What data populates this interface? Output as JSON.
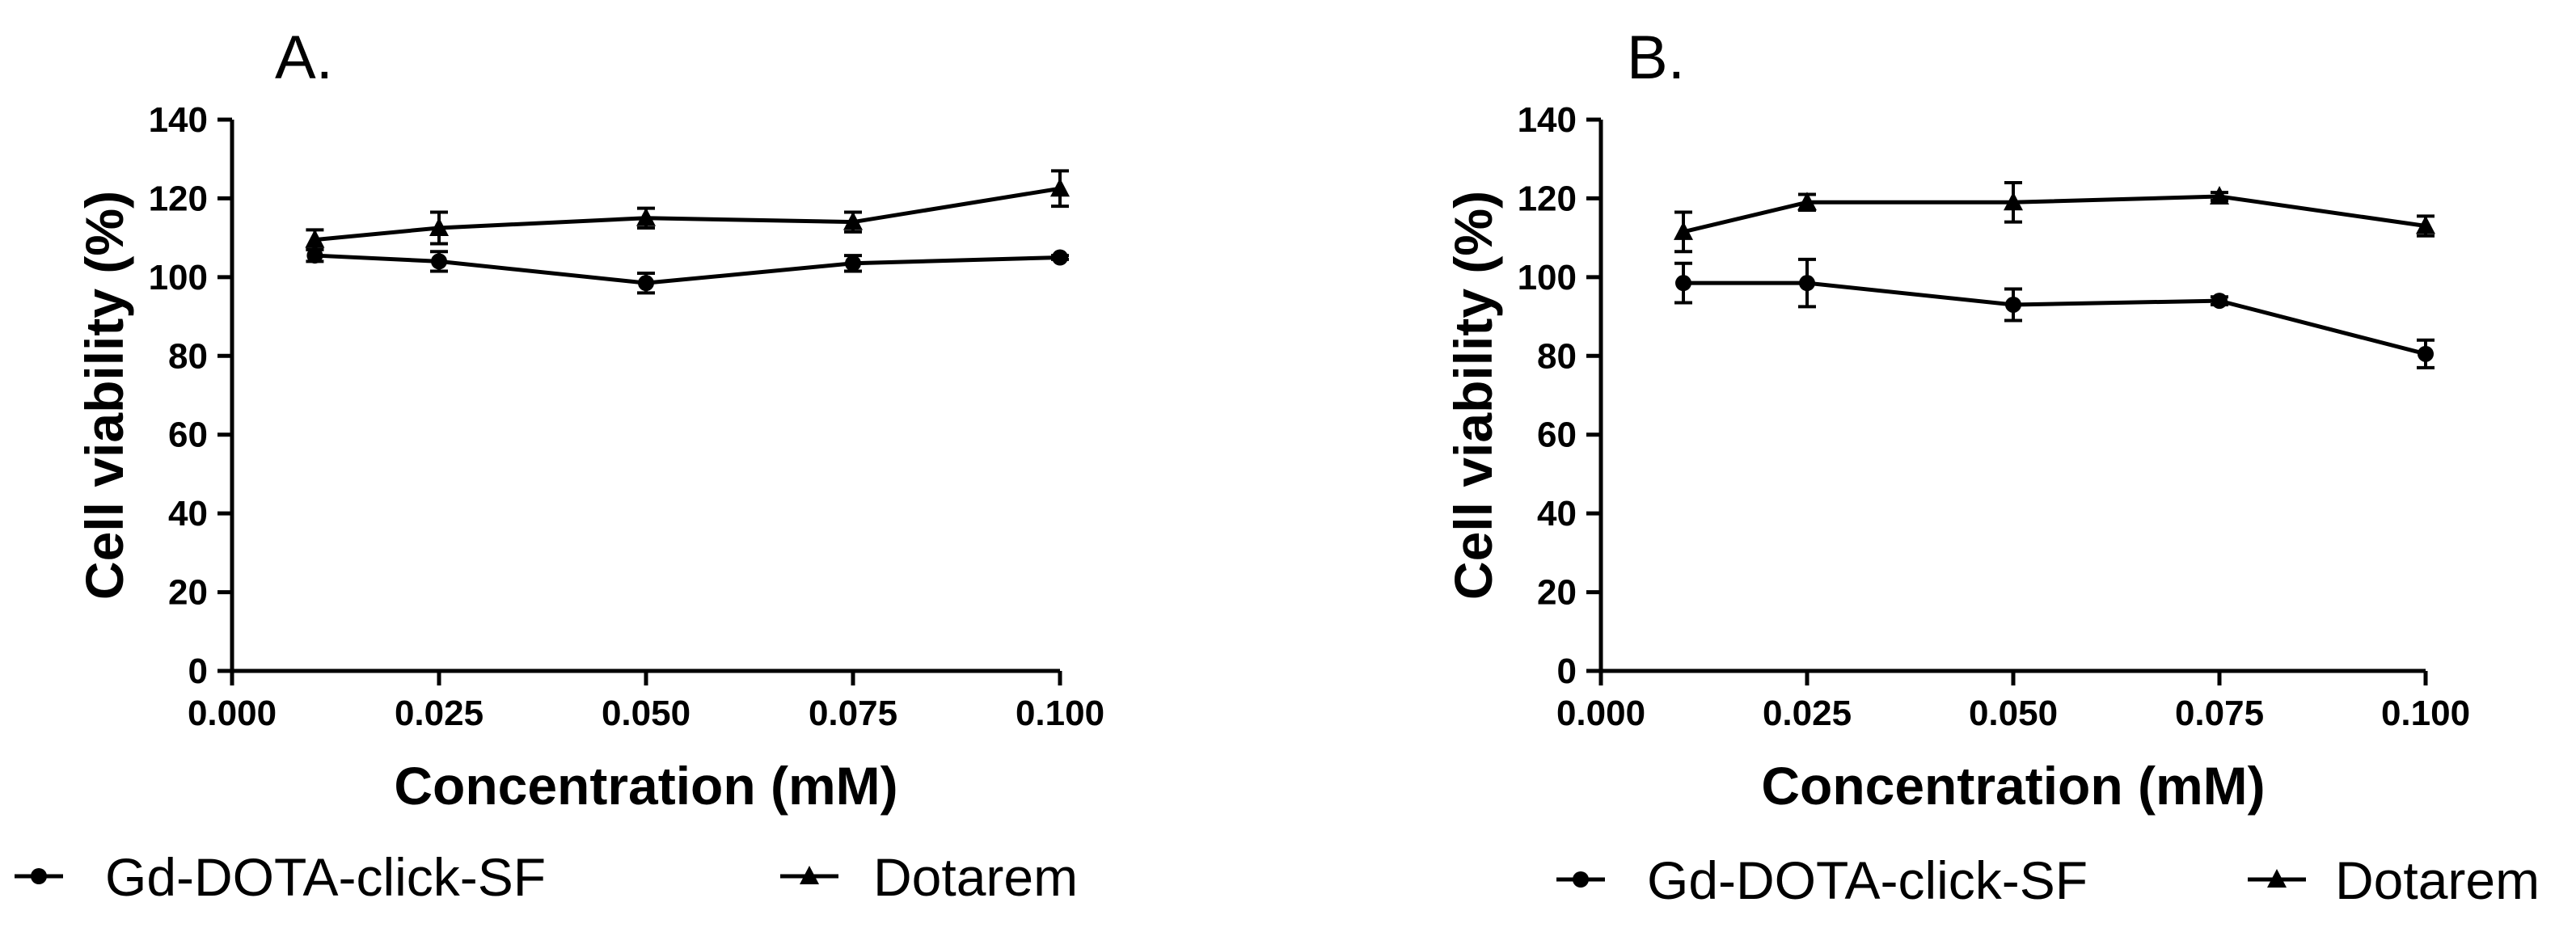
{
  "chart_data": [
    {
      "type": "line",
      "panel_label": "A.",
      "xlabel": "Concentration (mM)",
      "ylabel": "Cell viability (%)",
      "xlim": [
        0,
        0.1
      ],
      "ylim": [
        0,
        140
      ],
      "x_ticks": [
        "0.000",
        "0.025",
        "0.050",
        "0.075",
        "0.100"
      ],
      "y_ticks": [
        "0",
        "20",
        "40",
        "60",
        "80",
        "100",
        "120",
        "140"
      ],
      "legend_position": "bottom",
      "x": [
        0.01,
        0.025,
        0.05,
        0.075,
        0.1
      ],
      "series": [
        {
          "name": "Gd-DOTA-click-SF",
          "marker": "circle",
          "values": [
            105.5,
            104,
            98.5,
            103.5,
            105
          ],
          "errors": [
            1.5,
            2.5,
            2.5,
            2,
            0.5
          ]
        },
        {
          "name": "Dotarem",
          "marker": "triangle",
          "values": [
            109.5,
            112.5,
            115,
            114,
            122.5
          ],
          "errors": [
            2.5,
            4,
            2.5,
            2.5,
            4.5
          ]
        }
      ]
    },
    {
      "type": "line",
      "panel_label": "B.",
      "xlabel": "Concentration (mM)",
      "ylabel": "Cell viability (%)",
      "xlim": [
        0,
        0.1
      ],
      "ylim": [
        0,
        140
      ],
      "x_ticks": [
        "0.000",
        "0.025",
        "0.050",
        "0.075",
        "0.100"
      ],
      "y_ticks": [
        "0",
        "20",
        "40",
        "60",
        "80",
        "100",
        "120",
        "140"
      ],
      "legend_position": "bottom",
      "x": [
        0.01,
        0.025,
        0.05,
        0.075,
        0.1
      ],
      "series": [
        {
          "name": "Gd-DOTA-click-SF",
          "marker": "circle",
          "values": [
            98.5,
            98.5,
            93,
            94,
            80.5
          ],
          "errors": [
            5,
            6,
            4,
            1,
            3.5
          ]
        },
        {
          "name": "Dotarem",
          "marker": "triangle",
          "values": [
            111.5,
            119,
            119,
            120.5,
            113
          ],
          "errors": [
            5,
            2,
            5,
            1,
            2.5
          ]
        }
      ]
    }
  ]
}
